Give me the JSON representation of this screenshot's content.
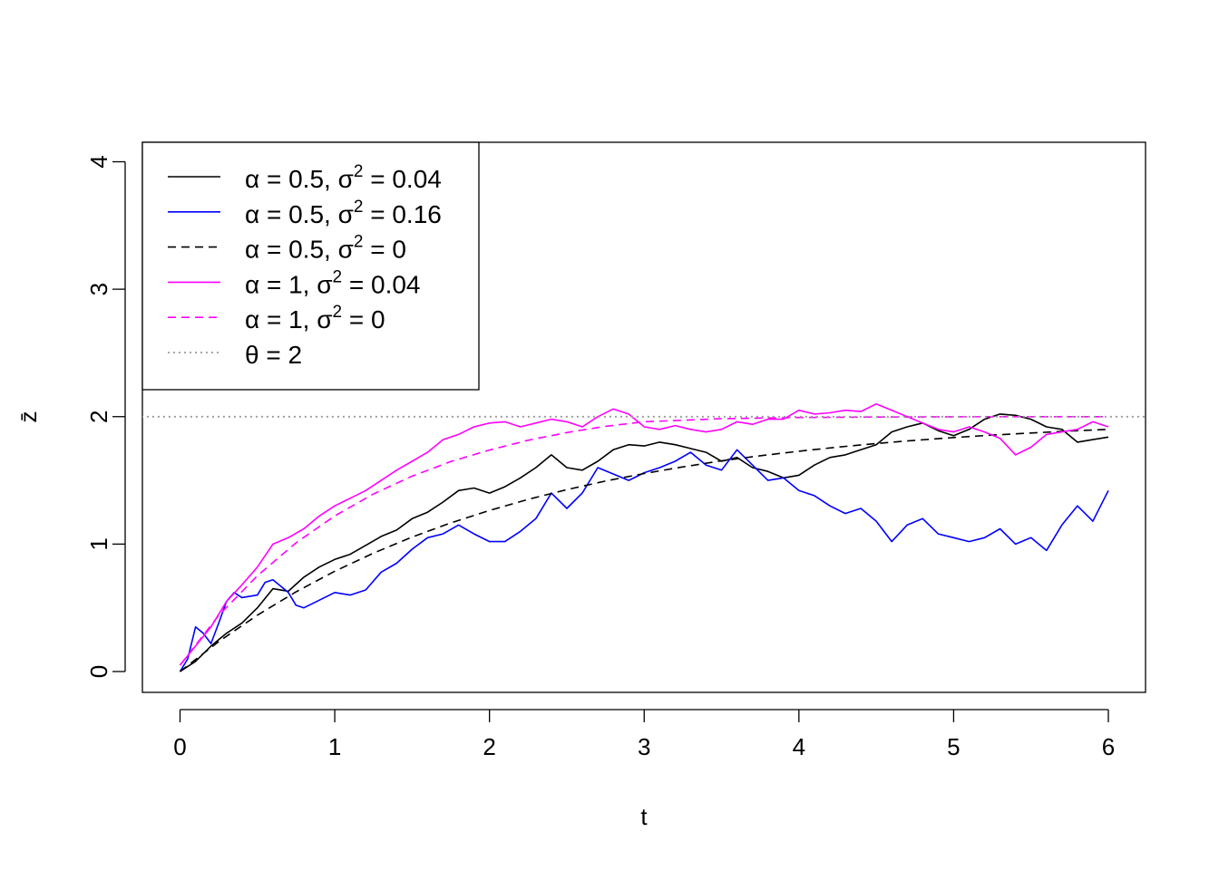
{
  "chart_data": {
    "type": "line",
    "title": "",
    "xlabel": "t",
    "ylabel": "z̄",
    "xlim": [
      0,
      6
    ],
    "ylim": [
      0,
      4
    ],
    "x_ticks": [
      "0",
      "1",
      "2",
      "3",
      "4",
      "5",
      "6"
    ],
    "y_ticks": [
      "0",
      "1",
      "2",
      "3",
      "4"
    ],
    "grid": false,
    "legend_placement": "top-left",
    "legend": [
      {
        "greek": "α",
        "value": "0.5",
        "sig": "σ",
        "sup": "2",
        "sigval": "0.04",
        "color": "#000000",
        "dash": "solid"
      },
      {
        "greek": "α",
        "value": "0.5",
        "sig": "σ",
        "sup": "2",
        "sigval": "0.16",
        "color": "#0000FF",
        "dash": "solid"
      },
      {
        "greek": "α",
        "value": "0.5",
        "sig": "σ",
        "sup": "2",
        "sigval": "0",
        "color": "#000000",
        "dash": "dashed"
      },
      {
        "greek": "α",
        "value": "1",
        "sig": "σ",
        "sup": "2",
        "sigval": "0.04",
        "color": "#FF00FF",
        "dash": "solid"
      },
      {
        "greek": "α",
        "value": "1",
        "sig": "σ",
        "sup": "2",
        "sigval": "0",
        "color": "#FF00FF",
        "dash": "dashed"
      },
      {
        "greek": "θ",
        "value": "2",
        "sig": "",
        "sup": "",
        "sigval": "",
        "color": "#999999",
        "dash": "dotted"
      }
    ],
    "series": [
      {
        "color": "#000000",
        "dash": "solid",
        "points": [
          [
            0,
            0
          ],
          [
            0.1,
            0.08
          ],
          [
            0.2,
            0.2
          ],
          [
            0.3,
            0.3
          ],
          [
            0.4,
            0.38
          ],
          [
            0.5,
            0.5
          ],
          [
            0.6,
            0.65
          ],
          [
            0.7,
            0.63
          ],
          [
            0.8,
            0.74
          ],
          [
            0.9,
            0.82
          ],
          [
            1,
            0.88
          ],
          [
            1.1,
            0.92
          ],
          [
            1.2,
            0.99
          ],
          [
            1.3,
            1.06
          ],
          [
            1.4,
            1.11
          ],
          [
            1.5,
            1.2
          ],
          [
            1.6,
            1.25
          ],
          [
            1.7,
            1.33
          ],
          [
            1.8,
            1.42
          ],
          [
            1.9,
            1.44
          ],
          [
            2,
            1.4
          ],
          [
            2.1,
            1.45
          ],
          [
            2.2,
            1.52
          ],
          [
            2.3,
            1.6
          ],
          [
            2.4,
            1.7
          ],
          [
            2.5,
            1.6
          ],
          [
            2.6,
            1.58
          ],
          [
            2.7,
            1.65
          ],
          [
            2.8,
            1.74
          ],
          [
            2.9,
            1.78
          ],
          [
            3,
            1.77
          ],
          [
            3.1,
            1.8
          ],
          [
            3.2,
            1.78
          ],
          [
            3.3,
            1.75
          ],
          [
            3.4,
            1.72
          ],
          [
            3.5,
            1.65
          ],
          [
            3.6,
            1.68
          ],
          [
            3.7,
            1.6
          ],
          [
            3.8,
            1.57
          ],
          [
            3.9,
            1.52
          ],
          [
            4,
            1.54
          ],
          [
            4.1,
            1.62
          ],
          [
            4.2,
            1.68
          ],
          [
            4.3,
            1.7
          ],
          [
            4.4,
            1.74
          ],
          [
            4.5,
            1.78
          ],
          [
            4.6,
            1.88
          ],
          [
            4.7,
            1.92
          ],
          [
            4.8,
            1.95
          ],
          [
            4.9,
            1.89
          ],
          [
            5,
            1.85
          ],
          [
            5.1,
            1.9
          ],
          [
            5.2,
            1.98
          ],
          [
            5.3,
            2.02
          ],
          [
            5.4,
            2.01
          ],
          [
            5.5,
            1.98
          ],
          [
            5.6,
            1.92
          ],
          [
            5.7,
            1.9
          ],
          [
            5.8,
            1.8
          ],
          [
            5.9,
            1.82
          ],
          [
            6,
            1.84
          ]
        ]
      },
      {
        "color": "#0000FF",
        "dash": "solid",
        "points": [
          [
            0,
            0
          ],
          [
            0.05,
            0.1
          ],
          [
            0.1,
            0.35
          ],
          [
            0.15,
            0.3
          ],
          [
            0.2,
            0.22
          ],
          [
            0.25,
            0.38
          ],
          [
            0.3,
            0.55
          ],
          [
            0.35,
            0.62
          ],
          [
            0.4,
            0.58
          ],
          [
            0.5,
            0.6
          ],
          [
            0.55,
            0.7
          ],
          [
            0.6,
            0.72
          ],
          [
            0.7,
            0.62
          ],
          [
            0.75,
            0.52
          ],
          [
            0.8,
            0.5
          ],
          [
            0.9,
            0.56
          ],
          [
            1,
            0.62
          ],
          [
            1.1,
            0.6
          ],
          [
            1.2,
            0.64
          ],
          [
            1.3,
            0.78
          ],
          [
            1.4,
            0.85
          ],
          [
            1.5,
            0.96
          ],
          [
            1.6,
            1.05
          ],
          [
            1.7,
            1.08
          ],
          [
            1.8,
            1.15
          ],
          [
            1.9,
            1.08
          ],
          [
            2,
            1.02
          ],
          [
            2.1,
            1.02
          ],
          [
            2.2,
            1.1
          ],
          [
            2.3,
            1.2
          ],
          [
            2.4,
            1.4
          ],
          [
            2.5,
            1.28
          ],
          [
            2.6,
            1.4
          ],
          [
            2.7,
            1.6
          ],
          [
            2.8,
            1.55
          ],
          [
            2.9,
            1.5
          ],
          [
            3,
            1.56
          ],
          [
            3.1,
            1.6
          ],
          [
            3.2,
            1.65
          ],
          [
            3.3,
            1.72
          ],
          [
            3.4,
            1.62
          ],
          [
            3.5,
            1.58
          ],
          [
            3.6,
            1.74
          ],
          [
            3.7,
            1.62
          ],
          [
            3.8,
            1.5
          ],
          [
            3.9,
            1.52
          ],
          [
            4,
            1.42
          ],
          [
            4.1,
            1.38
          ],
          [
            4.2,
            1.3
          ],
          [
            4.3,
            1.24
          ],
          [
            4.4,
            1.28
          ],
          [
            4.5,
            1.18
          ],
          [
            4.6,
            1.02
          ],
          [
            4.7,
            1.15
          ],
          [
            4.8,
            1.2
          ],
          [
            4.9,
            1.08
          ],
          [
            5,
            1.05
          ],
          [
            5.1,
            1.02
          ],
          [
            5.2,
            1.05
          ],
          [
            5.3,
            1.12
          ],
          [
            5.4,
            1.0
          ],
          [
            5.5,
            1.05
          ],
          [
            5.6,
            0.95
          ],
          [
            5.7,
            1.15
          ],
          [
            5.8,
            1.3
          ],
          [
            5.9,
            1.18
          ],
          [
            6,
            1.42
          ]
        ]
      },
      {
        "color": "#000000",
        "dash": "dashed",
        "points": [
          [
            0,
            0
          ],
          [
            0.25,
            0.235
          ],
          [
            0.5,
            0.442
          ],
          [
            0.75,
            0.625
          ],
          [
            1,
            0.787
          ],
          [
            1.25,
            0.929
          ],
          [
            1.5,
            1.055
          ],
          [
            1.75,
            1.166
          ],
          [
            2,
            1.264
          ],
          [
            2.25,
            1.351
          ],
          [
            2.5,
            1.427
          ],
          [
            2.75,
            1.495
          ],
          [
            3,
            1.554
          ],
          [
            3.25,
            1.606
          ],
          [
            3.5,
            1.653
          ],
          [
            3.75,
            1.693
          ],
          [
            4,
            1.729
          ],
          [
            4.25,
            1.761
          ],
          [
            4.5,
            1.789
          ],
          [
            4.75,
            1.814
          ],
          [
            5,
            1.836
          ],
          [
            5.25,
            1.855
          ],
          [
            5.5,
            1.872
          ],
          [
            5.75,
            1.887
          ],
          [
            6,
            1.9
          ]
        ]
      },
      {
        "color": "#FF00FF",
        "dash": "solid",
        "points": [
          [
            0,
            0.05
          ],
          [
            0.1,
            0.2
          ],
          [
            0.2,
            0.35
          ],
          [
            0.3,
            0.55
          ],
          [
            0.4,
            0.68
          ],
          [
            0.5,
            0.82
          ],
          [
            0.6,
            1.0
          ],
          [
            0.7,
            1.05
          ],
          [
            0.8,
            1.12
          ],
          [
            0.9,
            1.22
          ],
          [
            1,
            1.3
          ],
          [
            1.1,
            1.36
          ],
          [
            1.2,
            1.42
          ],
          [
            1.3,
            1.5
          ],
          [
            1.4,
            1.58
          ],
          [
            1.5,
            1.65
          ],
          [
            1.6,
            1.72
          ],
          [
            1.7,
            1.82
          ],
          [
            1.8,
            1.86
          ],
          [
            1.9,
            1.92
          ],
          [
            2,
            1.95
          ],
          [
            2.1,
            1.96
          ],
          [
            2.2,
            1.92
          ],
          [
            2.3,
            1.95
          ],
          [
            2.4,
            1.98
          ],
          [
            2.5,
            1.96
          ],
          [
            2.6,
            1.92
          ],
          [
            2.7,
            2.0
          ],
          [
            2.8,
            2.06
          ],
          [
            2.9,
            2.02
          ],
          [
            3,
            1.92
          ],
          [
            3.1,
            1.9
          ],
          [
            3.2,
            1.93
          ],
          [
            3.3,
            1.9
          ],
          [
            3.4,
            1.88
          ],
          [
            3.5,
            1.9
          ],
          [
            3.6,
            1.96
          ],
          [
            3.7,
            1.94
          ],
          [
            3.8,
            1.98
          ],
          [
            3.9,
            1.98
          ],
          [
            4,
            2.05
          ],
          [
            4.1,
            2.02
          ],
          [
            4.2,
            2.03
          ],
          [
            4.3,
            2.05
          ],
          [
            4.4,
            2.04
          ],
          [
            4.5,
            2.1
          ],
          [
            4.6,
            2.05
          ],
          [
            4.7,
            2.0
          ],
          [
            4.8,
            1.95
          ],
          [
            4.9,
            1.9
          ],
          [
            5,
            1.88
          ],
          [
            5.1,
            1.92
          ],
          [
            5.2,
            1.88
          ],
          [
            5.3,
            1.83
          ],
          [
            5.4,
            1.7
          ],
          [
            5.5,
            1.76
          ],
          [
            5.6,
            1.86
          ],
          [
            5.7,
            1.88
          ],
          [
            5.8,
            1.9
          ],
          [
            5.9,
            1.96
          ],
          [
            6,
            1.92
          ]
        ]
      },
      {
        "color": "#FF00FF",
        "dash": "dashed",
        "points": [
          [
            0,
            0.05
          ],
          [
            0.25,
            0.44
          ],
          [
            0.5,
            0.752
          ],
          [
            0.75,
            1.01
          ],
          [
            1,
            1.221
          ],
          [
            1.25,
            1.393
          ],
          [
            1.5,
            1.533
          ],
          [
            1.75,
            1.648
          ],
          [
            2,
            1.738
          ],
          [
            2.25,
            1.815
          ],
          [
            2.5,
            1.875
          ],
          [
            2.75,
            1.924
          ],
          [
            3,
            1.96
          ],
          [
            3.5,
            1.984
          ],
          [
            4,
            1.993
          ],
          [
            4.5,
            1.997
          ],
          [
            5,
            1.999
          ],
          [
            5.5,
            2.0
          ],
          [
            6,
            2.0
          ]
        ]
      },
      {
        "color": "#999999",
        "dash": "dotted",
        "points": [
          [
            -0.25,
            2
          ],
          [
            6.25,
            2
          ]
        ]
      }
    ]
  }
}
